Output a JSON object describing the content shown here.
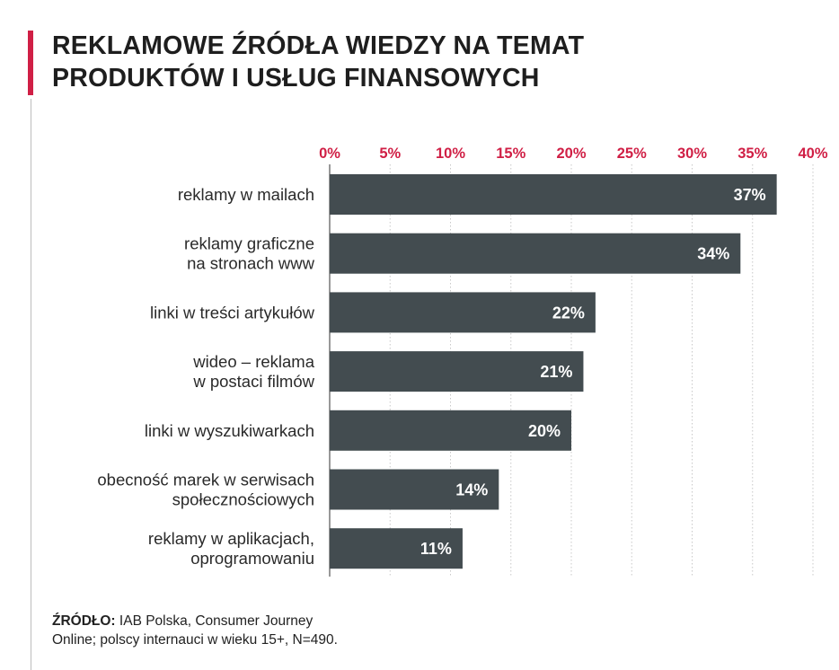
{
  "title": {
    "line1": "REKLAMOWE ŹRÓDŁA WIEDZY NA TEMAT",
    "line2": "PRODUKTÓW I USŁUG FINANSOWYCH"
  },
  "colors": {
    "accent": "#d01f45",
    "bar": "#434c50",
    "bar_label": "#ffffff",
    "tick_label": "#d01f45",
    "gridline": "#c8c8c8"
  },
  "source": {
    "label": "ŹRÓDŁO:",
    "line1": "IAB Polska, Consumer Journey",
    "line2": "Online; polscy internauci w wieku 15+, N=490."
  },
  "chart_data": {
    "type": "bar",
    "orientation": "horizontal",
    "axis_position": "top",
    "xlim": [
      0,
      40
    ],
    "tick_values": [
      0,
      5,
      10,
      15,
      20,
      25,
      30,
      35,
      40
    ],
    "tick_labels": [
      "0%",
      "5%",
      "10%",
      "15%",
      "20%",
      "25%",
      "30%",
      "35%",
      "40%"
    ],
    "grid": "vertical dotted",
    "categories": [
      [
        "reklamy w mailach"
      ],
      [
        "reklamy graficzne",
        "na stronach www"
      ],
      [
        "linki w treści artykułów"
      ],
      [
        "wideo – reklama",
        "w postaci filmów"
      ],
      [
        "linki w wyszukiwarkach"
      ],
      [
        "obecność marek w serwisach",
        "społecznościowych"
      ],
      [
        "reklamy w aplikacjach,",
        "oprogramowaniu"
      ]
    ],
    "values": [
      37,
      34,
      22,
      21,
      20,
      14,
      11
    ],
    "value_labels": [
      "37%",
      "34%",
      "22%",
      "21%",
      "20%",
      "14%",
      "11%"
    ]
  }
}
